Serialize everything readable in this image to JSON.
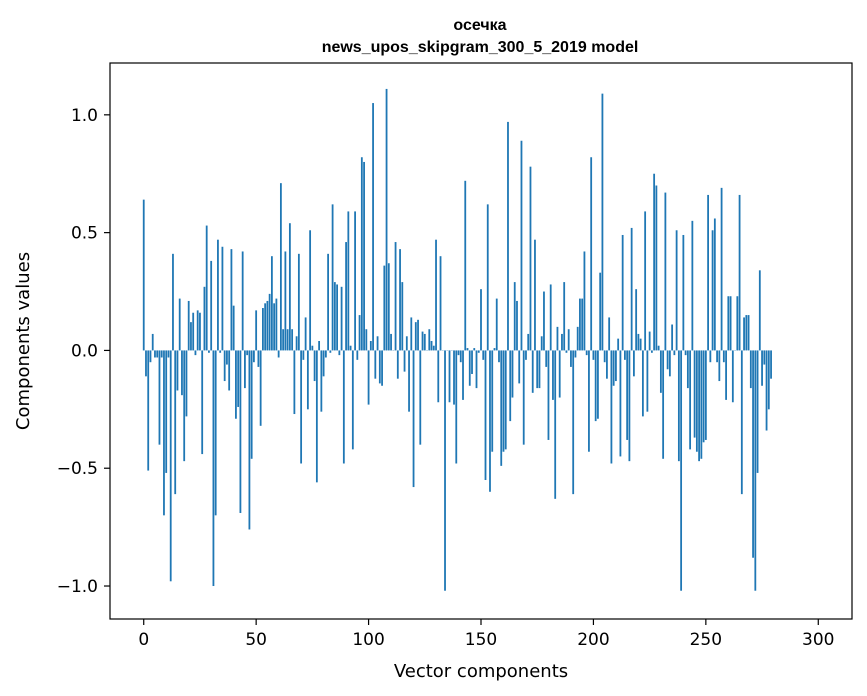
{
  "chart_data": {
    "type": "bar",
    "title_line1": "осечка",
    "title_line2": "news_upos_skipgram_300_5_2019 model",
    "xlabel": "Vector components",
    "ylabel": "Components values",
    "xlim": [
      -15,
      315
    ],
    "ylim": [
      -1.14,
      1.22
    ],
    "xticks": [
      0,
      50,
      100,
      150,
      200,
      250,
      300
    ],
    "xtick_labels": [
      "0",
      "50",
      "100",
      "150",
      "200",
      "250",
      "300"
    ],
    "yticks": [
      -1.0,
      -0.5,
      0.0,
      0.5,
      1.0
    ],
    "ytick_labels": [
      "−1.0",
      "−0.5",
      "0.0",
      "0.5",
      "1.0"
    ],
    "bar_color": "#1f77b4",
    "values": [
      0.64,
      -0.11,
      -0.51,
      -0.05,
      0.07,
      -0.03,
      -0.03,
      -0.4,
      -0.03,
      -0.7,
      -0.52,
      -0.03,
      -0.98,
      0.41,
      -0.61,
      -0.17,
      0.22,
      -0.19,
      -0.47,
      -0.28,
      0.21,
      0.12,
      0.16,
      -0.02,
      0.17,
      0.16,
      -0.44,
      0.27,
      0.53,
      -0.01,
      0.38,
      -1.0,
      -0.7,
      0.47,
      -0.01,
      0.44,
      -0.13,
      -0.06,
      -0.17,
      0.43,
      0.19,
      -0.29,
      -0.24,
      -0.69,
      0.42,
      -0.16,
      -0.02,
      -0.76,
      -0.46,
      -0.05,
      0.17,
      -0.07,
      -0.32,
      0.18,
      0.2,
      0.21,
      0.24,
      0.4,
      0.2,
      0.22,
      -0.03,
      0.71,
      0.09,
      0.42,
      0.09,
      0.54,
      0.09,
      -0.27,
      0.06,
      0.41,
      -0.48,
      -0.04,
      0.14,
      -0.25,
      0.51,
      0.02,
      -0.13,
      -0.56,
      0.04,
      -0.26,
      -0.11,
      -0.03,
      0.41,
      -0.01,
      0.62,
      0.29,
      0.28,
      -0.02,
      0.27,
      -0.48,
      0.46,
      0.59,
      0.02,
      -0.42,
      0.59,
      -0.04,
      0.15,
      0.82,
      0.8,
      0.09,
      -0.23,
      0.04,
      1.05,
      -0.12,
      0.06,
      -0.14,
      -0.15,
      0.36,
      1.11,
      0.37,
      0.07,
      0.0,
      0.46,
      -0.12,
      0.43,
      0.29,
      -0.09,
      0.06,
      -0.26,
      0.14,
      -0.58,
      0.12,
      0.13,
      -0.4,
      0.08,
      0.07,
      0.0,
      0.09,
      0.04,
      0.02,
      0.47,
      -0.22,
      0.4,
      0.0,
      -1.02,
      0.0,
      -0.22,
      0.0,
      -0.23,
      -0.48,
      -0.02,
      -0.05,
      -0.21,
      0.72,
      0.01,
      -0.15,
      -0.1,
      0.01,
      -0.16,
      -0.01,
      0.26,
      -0.04,
      -0.55,
      0.62,
      -0.6,
      -0.43,
      0.01,
      0.22,
      -0.05,
      -0.49,
      -0.43,
      -0.42,
      0.97,
      -0.3,
      -0.2,
      0.29,
      0.21,
      -0.14,
      0.89,
      -0.4,
      -0.04,
      0.07,
      0.78,
      -0.18,
      0.47,
      -0.16,
      -0.16,
      0.06,
      0.25,
      -0.07,
      -0.38,
      0.28,
      -0.21,
      -0.63,
      0.1,
      -0.2,
      0.07,
      0.29,
      -0.01,
      0.09,
      -0.07,
      -0.61,
      -0.03,
      0.1,
      0.22,
      0.22,
      0.42,
      -0.02,
      -0.43,
      0.82,
      -0.04,
      -0.3,
      -0.29,
      0.33,
      1.09,
      -0.05,
      -0.12,
      0.14,
      -0.48,
      -0.15,
      -0.13,
      0.05,
      -0.45,
      0.49,
      -0.04,
      -0.38,
      -0.47,
      0.52,
      -0.11,
      0.26,
      0.07,
      0.05,
      -0.28,
      0.59,
      -0.26,
      0.08,
      -0.01,
      0.75,
      0.7,
      0.02,
      -0.18,
      -0.46,
      0.67,
      -0.08,
      -0.11,
      0.11,
      -0.02,
      0.51,
      -0.47,
      -1.02,
      0.49,
      -0.02,
      -0.16,
      -0.42,
      0.55,
      -0.37,
      -0.43,
      -0.47,
      -0.46,
      -0.39,
      -0.38,
      0.66,
      -0.05,
      0.51,
      0.56,
      -0.05,
      -0.13,
      0.69,
      -0.05,
      -0.21,
      0.23,
      0.23,
      -0.22,
      0.0,
      0.23,
      0.66,
      -0.61,
      0.14,
      0.15,
      0.15,
      -0.16,
      -0.88,
      -1.02,
      -0.52,
      0.34,
      -0.15,
      -0.06,
      -0.34,
      -0.25,
      -0.12
    ]
  }
}
